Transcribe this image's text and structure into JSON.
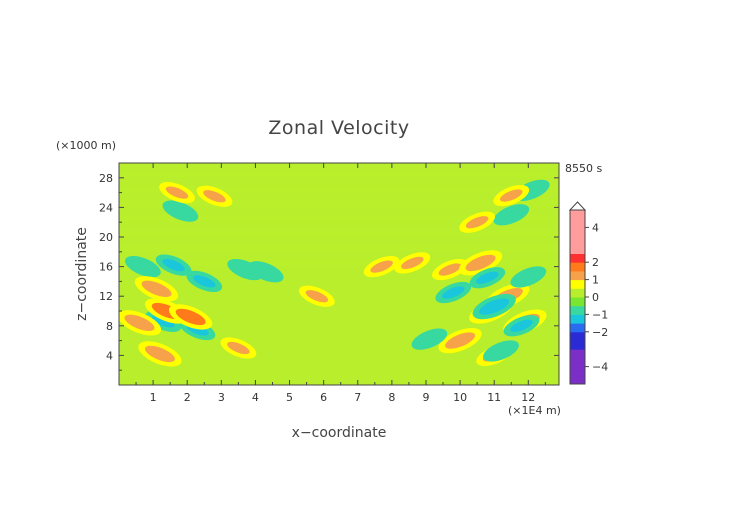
{
  "chart_data": {
    "type": "heatmap",
    "title": "Zonal Velocity",
    "xlabel": "x−coordinate",
    "ylabel": "z−coordinate",
    "x_unit": "(×1E4 m)",
    "y_unit": "(×1000 m)",
    "time_label": "8550 s",
    "x_ticks": [
      "1",
      "2",
      "3",
      "4",
      "5",
      "6",
      "7",
      "8",
      "9",
      "10",
      "11",
      "12"
    ],
    "y_ticks": [
      "4",
      "8",
      "12",
      "16",
      "20",
      "24",
      "28"
    ],
    "xlim": [
      0,
      12.9
    ],
    "ylim": [
      0,
      30
    ],
    "colorbar": {
      "ticks": [
        {
          "label": "4",
          "value": 4
        },
        {
          "label": "2",
          "value": 2
        },
        {
          "label": "1",
          "value": 1
        },
        {
          "label": "0",
          "value": 0
        },
        {
          "label": "−1",
          "value": -1
        },
        {
          "label": "−2",
          "value": -2
        },
        {
          "label": "−4",
          "value": -4
        }
      ],
      "range": [
        -5,
        5
      ]
    },
    "background_value": 0.3,
    "features": [
      {
        "x": 0.7,
        "z": 16.0,
        "value": -1.0
      },
      {
        "x": 1.6,
        "z": 16.2,
        "value": -1.1
      },
      {
        "x": 2.5,
        "z": 14.0,
        "value": -1.2
      },
      {
        "x": 1.3,
        "z": 8.6,
        "value": -1.2
      },
      {
        "x": 2.3,
        "z": 7.5,
        "value": -1.1
      },
      {
        "x": 3.7,
        "z": 15.6,
        "value": -1.0
      },
      {
        "x": 4.3,
        "z": 15.3,
        "value": -1.0
      },
      {
        "x": 1.4,
        "z": 10.0,
        "value": 1.5
      },
      {
        "x": 2.1,
        "z": 9.2,
        "value": 1.5
      },
      {
        "x": 1.1,
        "z": 13.0,
        "value": 1.3
      },
      {
        "x": 0.6,
        "z": 8.4,
        "value": 1.3
      },
      {
        "x": 1.2,
        "z": 4.2,
        "value": 1.3
      },
      {
        "x": 3.5,
        "z": 5.0,
        "value": 1.2
      },
      {
        "x": 5.8,
        "z": 12.0,
        "value": 1.1
      },
      {
        "x": 7.7,
        "z": 16.0,
        "value": 1.2
      },
      {
        "x": 8.6,
        "z": 16.5,
        "value": 1.1
      },
      {
        "x": 9.7,
        "z": 15.6,
        "value": 1.2
      },
      {
        "x": 10.6,
        "z": 16.5,
        "value": 1.3
      },
      {
        "x": 11.4,
        "z": 12.0,
        "value": 1.4
      },
      {
        "x": 10.9,
        "z": 10.0,
        "value": 1.5
      },
      {
        "x": 11.9,
        "z": 8.5,
        "value": 1.3
      },
      {
        "x": 10.0,
        "z": 6.0,
        "value": 1.4
      },
      {
        "x": 11.0,
        "z": 4.0,
        "value": 1.2
      },
      {
        "x": 9.8,
        "z": 12.5,
        "value": -1.1
      },
      {
        "x": 10.8,
        "z": 14.5,
        "value": -1.1
      },
      {
        "x": 11.0,
        "z": 10.6,
        "value": -1.3
      },
      {
        "x": 11.8,
        "z": 8.0,
        "value": -1.1
      },
      {
        "x": 11.2,
        "z": 4.6,
        "value": -1.0
      },
      {
        "x": 9.1,
        "z": 6.2,
        "value": -1.0
      },
      {
        "x": 11.5,
        "z": 23.0,
        "value": -1.0
      },
      {
        "x": 12.1,
        "z": 26.3,
        "value": -1.0
      },
      {
        "x": 12.0,
        "z": 14.6,
        "value": -1.0
      },
      {
        "x": 1.8,
        "z": 23.5,
        "value": -0.9
      },
      {
        "x": 10.5,
        "z": 22.0,
        "value": 1.0
      },
      {
        "x": 11.5,
        "z": 25.6,
        "value": 1.0
      },
      {
        "x": 1.7,
        "z": 26.0,
        "value": 1.0
      },
      {
        "x": 2.8,
        "z": 25.5,
        "value": 1.0
      }
    ]
  }
}
